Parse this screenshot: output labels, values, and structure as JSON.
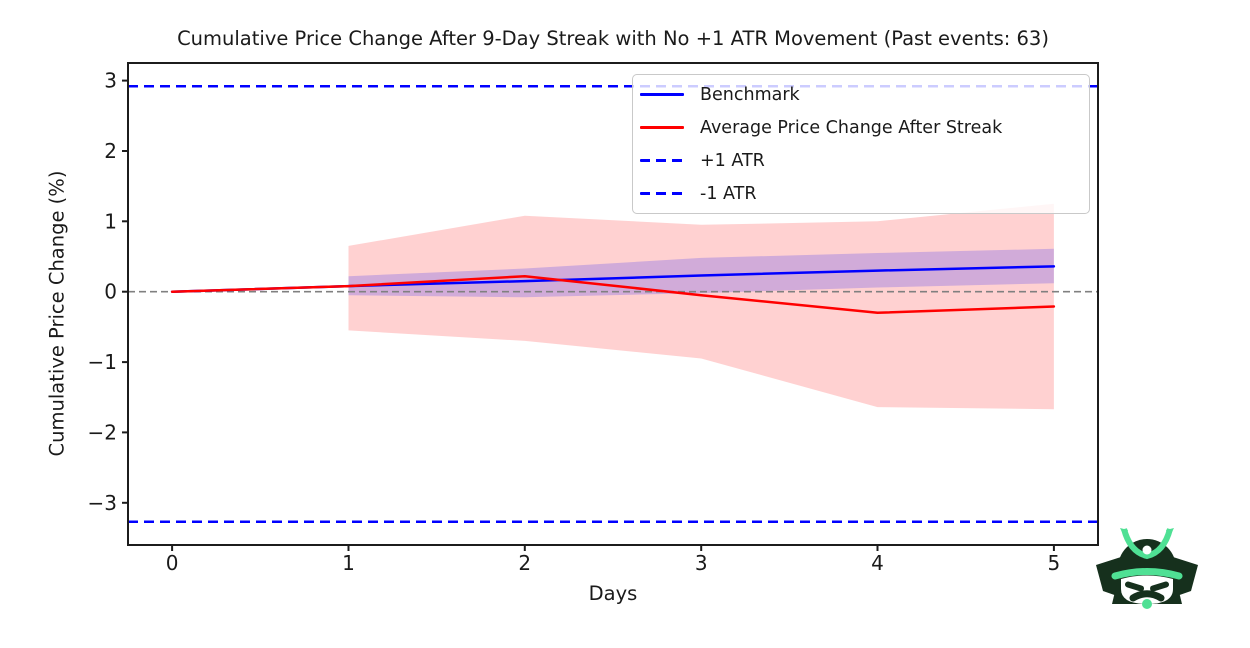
{
  "window": {
    "background": "#ffffff"
  },
  "chart_data": {
    "type": "line",
    "title": "Cumulative Price Change After 9-Day Streak with No +1 ATR Movement (Past events: 63)",
    "past_events": 63,
    "xlabel": "Days",
    "ylabel": "Cumulative Price Change (%)",
    "xlim": [
      -0.25,
      5.25
    ],
    "ylim": [
      -3.6,
      3.25
    ],
    "xticks": [
      0,
      1,
      2,
      3,
      4,
      5
    ],
    "xtick_labels": [
      "0",
      "1",
      "2",
      "3",
      "4",
      "5"
    ],
    "ytick_values": [
      -3,
      -2,
      -1,
      0,
      1,
      2,
      3
    ],
    "ytick_labels": [
      "−3",
      "−2",
      "−1",
      "0",
      "1",
      "2",
      "3"
    ],
    "grid": false,
    "legend_position": "upper right",
    "x": [
      0,
      1,
      2,
      3,
      4,
      5
    ],
    "series": [
      {
        "name": "Benchmark",
        "kind": "line",
        "color": "#0000ff",
        "dash": false,
        "width": 2.5,
        "values": [
          0,
          0.08,
          0.15,
          0.23,
          0.3,
          0.36
        ]
      },
      {
        "name": "Average Price Change After Streak",
        "kind": "line",
        "color": "#ff0000",
        "dash": false,
        "width": 2.5,
        "values": [
          0,
          0.08,
          0.22,
          -0.05,
          -0.3,
          -0.21
        ]
      },
      {
        "name": "+1 ATR",
        "kind": "hline",
        "color": "#0000ff",
        "dash": true,
        "width": 2.5,
        "value": 2.92
      },
      {
        "name": "-1 ATR",
        "kind": "hline",
        "color": "#0000ff",
        "dash": true,
        "width": 2.5,
        "value": -3.27
      }
    ],
    "bands": [
      {
        "name": "average-price-change-band",
        "color": "#ff0000",
        "alpha": 0.18,
        "x": [
          1,
          2,
          3,
          4,
          5
        ],
        "upper": [
          0.65,
          1.08,
          0.95,
          1.0,
          1.25
        ],
        "lower": [
          -0.55,
          -0.7,
          -0.95,
          -1.64,
          -1.67
        ]
      },
      {
        "name": "benchmark-band",
        "color": "#0000ff",
        "alpha": 0.18,
        "x": [
          1,
          2,
          3,
          4,
          5
        ],
        "upper": [
          0.22,
          0.33,
          0.48,
          0.55,
          0.61
        ],
        "lower": [
          -0.05,
          -0.08,
          -0.02,
          0.06,
          0.12
        ]
      }
    ],
    "zero_line": {
      "y": 0,
      "color": "#808080",
      "dash": true,
      "width": 1.6
    }
  },
  "legend": {
    "items": [
      {
        "label": "Benchmark",
        "color": "#0000ff",
        "dash": false
      },
      {
        "label": "Average Price Change After Streak",
        "color": "#ff0000",
        "dash": false
      },
      {
        "label": "+1 ATR",
        "color": "#0000ff",
        "dash": true
      },
      {
        "label": "-1 ATR",
        "color": "#0000ff",
        "dash": true
      }
    ]
  },
  "logo": {
    "dark": "#16301d",
    "mint": "#4fe094"
  }
}
